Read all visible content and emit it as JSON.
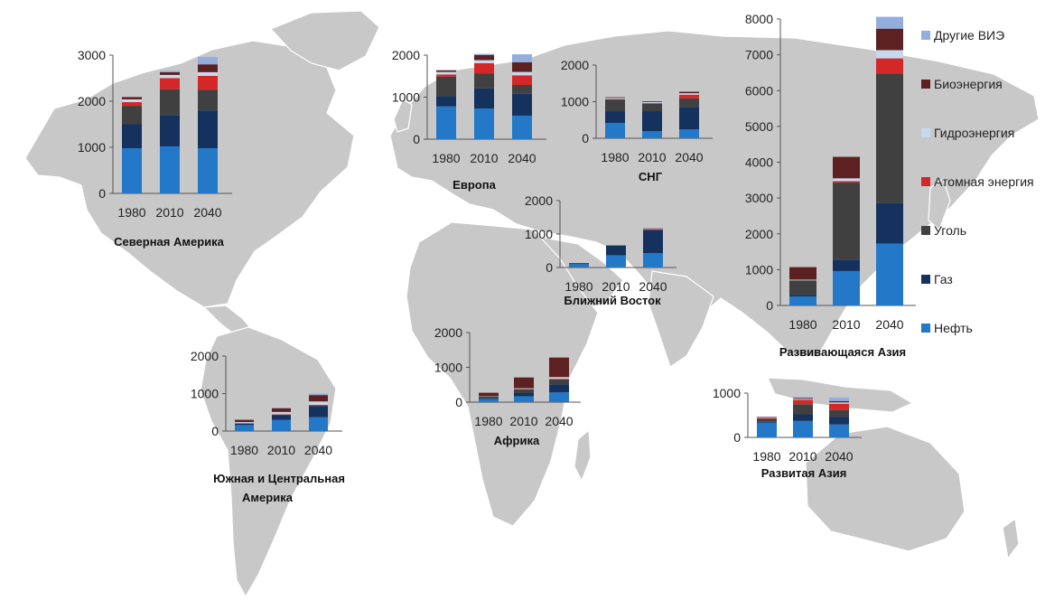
{
  "legend": {
    "items": [
      {
        "key": "oil",
        "label": "Нефть",
        "color": "#2478c8"
      },
      {
        "key": "gas",
        "label": "Газ",
        "color": "#15325f"
      },
      {
        "key": "coal",
        "label": "Уголь",
        "color": "#404040"
      },
      {
        "key": "nuc",
        "label": "Атомная энергия",
        "color": "#d42727"
      },
      {
        "key": "hydro",
        "label": "Гидроэнергия",
        "color": "#c7d9ee"
      },
      {
        "key": "bio",
        "label": "Биоэнергия",
        "color": "#5e2121"
      },
      {
        "key": "oth",
        "label": "Другие ВИЭ",
        "color": "#93aedc"
      }
    ]
  },
  "chart_data": [
    {
      "type": "bar",
      "stacked": true,
      "title": "Северная Америка",
      "categories": [
        "1980",
        "2010",
        "2040"
      ],
      "ylim": [
        0,
        3000
      ],
      "ticks": [
        0,
        1000,
        2000,
        3000
      ],
      "series": [
        {
          "key": "oil",
          "values": [
            980,
            1020,
            980
          ]
        },
        {
          "key": "gas",
          "values": [
            520,
            680,
            820
          ]
        },
        {
          "key": "coal",
          "values": [
            400,
            560,
            450
          ]
        },
        {
          "key": "nuc",
          "values": [
            80,
            240,
            300
          ]
        },
        {
          "key": "hydro",
          "values": [
            60,
            70,
            80
          ]
        },
        {
          "key": "bio",
          "values": [
            50,
            60,
            170
          ]
        },
        {
          "key": "oth",
          "values": [
            0,
            30,
            160
          ]
        }
      ]
    },
    {
      "type": "bar",
      "stacked": true,
      "title": "Европа",
      "categories": [
        "1980",
        "2010",
        "2040"
      ],
      "ylim": [
        0,
        2000
      ],
      "ticks": [
        0,
        1000,
        2000
      ],
      "series": [
        {
          "key": "oil",
          "values": [
            780,
            730,
            560
          ]
        },
        {
          "key": "gas",
          "values": [
            240,
            480,
            520
          ]
        },
        {
          "key": "coal",
          "values": [
            470,
            350,
            210
          ]
        },
        {
          "key": "nuc",
          "values": [
            50,
            250,
            230
          ]
        },
        {
          "key": "hydro",
          "values": [
            60,
            70,
            80
          ]
        },
        {
          "key": "bio",
          "values": [
            40,
            120,
            230
          ]
        },
        {
          "key": "oth",
          "values": [
            0,
            30,
            190
          ]
        }
      ]
    },
    {
      "type": "bar",
      "stacked": true,
      "title": "СНГ",
      "categories": [
        "1980",
        "2010",
        "2040"
      ],
      "ylim": [
        0,
        2000
      ],
      "ticks": [
        0,
        1000,
        2000
      ],
      "series": [
        {
          "key": "oil",
          "values": [
            420,
            190,
            240
          ]
        },
        {
          "key": "gas",
          "values": [
            320,
            550,
            620
          ]
        },
        {
          "key": "coal",
          "values": [
            320,
            200,
            230
          ]
        },
        {
          "key": "nuc",
          "values": [
            10,
            20,
            100
          ]
        },
        {
          "key": "hydro",
          "values": [
            30,
            30,
            40
          ]
        },
        {
          "key": "bio",
          "values": [
            20,
            20,
            40
          ]
        },
        {
          "key": "oth",
          "values": [
            0,
            0,
            10
          ]
        }
      ]
    },
    {
      "type": "bar",
      "stacked": true,
      "title": "Ближний Восток",
      "categories": [
        "1980",
        "2010",
        "2040"
      ],
      "ylim": [
        0,
        2000
      ],
      "ticks": [
        0,
        1000,
        2000
      ],
      "series": [
        {
          "key": "oil",
          "values": [
            100,
            360,
            430
          ]
        },
        {
          "key": "gas",
          "values": [
            30,
            300,
            690
          ]
        },
        {
          "key": "coal",
          "values": [
            0,
            0,
            10
          ]
        },
        {
          "key": "nuc",
          "values": [
            0,
            0,
            20
          ]
        },
        {
          "key": "hydro",
          "values": [
            0,
            0,
            10
          ]
        },
        {
          "key": "bio",
          "values": [
            0,
            0,
            10
          ]
        },
        {
          "key": "oth",
          "values": [
            0,
            0,
            10
          ]
        }
      ]
    },
    {
      "type": "bar",
      "stacked": true,
      "title": "Развивающаяся Азия",
      "categories": [
        "1980",
        "2010",
        "2040"
      ],
      "ylim": [
        0,
        8000
      ],
      "ticks": [
        0,
        1000,
        2000,
        3000,
        4000,
        5000,
        6000,
        7000,
        8000
      ],
      "series": [
        {
          "key": "oil",
          "values": [
            250,
            960,
            1730
          ]
        },
        {
          "key": "gas",
          "values": [
            50,
            320,
            1130
          ]
        },
        {
          "key": "coal",
          "values": [
            400,
            2150,
            3620
          ]
        },
        {
          "key": "nuc",
          "values": [
            0,
            40,
            420
          ]
        },
        {
          "key": "hydro",
          "values": [
            20,
            80,
            230
          ]
        },
        {
          "key": "bio",
          "values": [
            350,
            600,
            600
          ]
        },
        {
          "key": "oth",
          "values": [
            0,
            0,
            330
          ]
        }
      ]
    },
    {
      "type": "bar",
      "stacked": true,
      "title": "Южная и Центральная Америка",
      "categories": [
        "1980",
        "2010",
        "2040"
      ],
      "ylim": [
        0,
        2000
      ],
      "ticks": [
        0,
        1000,
        2000
      ],
      "series": [
        {
          "key": "oil",
          "values": [
            160,
            300,
            370
          ]
        },
        {
          "key": "gas",
          "values": [
            40,
            120,
            280
          ]
        },
        {
          "key": "coal",
          "values": [
            10,
            20,
            30
          ]
        },
        {
          "key": "nuc",
          "values": [
            0,
            10,
            20
          ]
        },
        {
          "key": "hydro",
          "values": [
            30,
            60,
            90
          ]
        },
        {
          "key": "bio",
          "values": [
            60,
            100,
            170
          ]
        },
        {
          "key": "oth",
          "values": [
            0,
            10,
            40
          ]
        }
      ]
    },
    {
      "type": "bar",
      "stacked": true,
      "title": "Африка",
      "categories": [
        "1980",
        "2010",
        "2040"
      ],
      "ylim": [
        0,
        2000
      ],
      "ticks": [
        0,
        1000,
        2000
      ],
      "series": [
        {
          "key": "oil",
          "values": [
            90,
            170,
            280
          ]
        },
        {
          "key": "gas",
          "values": [
            20,
            90,
            230
          ]
        },
        {
          "key": "coal",
          "values": [
            50,
            110,
            140
          ]
        },
        {
          "key": "nuc",
          "values": [
            0,
            10,
            20
          ]
        },
        {
          "key": "hydro",
          "values": [
            10,
            20,
            50
          ]
        },
        {
          "key": "bio",
          "values": [
            100,
            310,
            560
          ]
        },
        {
          "key": "oth",
          "values": [
            0,
            0,
            20
          ]
        }
      ]
    },
    {
      "type": "bar",
      "stacked": true,
      "title": "Развитая Азия",
      "categories": [
        "1980",
        "2010",
        "2040"
      ],
      "ylim": [
        0,
        1000
      ],
      "ticks": [
        0,
        1000
      ],
      "series": [
        {
          "key": "oil",
          "values": [
            330,
            370,
            290
          ]
        },
        {
          "key": "gas",
          "values": [
            20,
            150,
            170
          ]
        },
        {
          "key": "coal",
          "values": [
            70,
            230,
            160
          ]
        },
        {
          "key": "nuc",
          "values": [
            20,
            100,
            140
          ]
        },
        {
          "key": "hydro",
          "values": [
            20,
            20,
            30
          ]
        },
        {
          "key": "bio",
          "values": [
            10,
            20,
            30
          ]
        },
        {
          "key": "oth",
          "values": [
            0,
            20,
            80
          ]
        }
      ]
    }
  ]
}
